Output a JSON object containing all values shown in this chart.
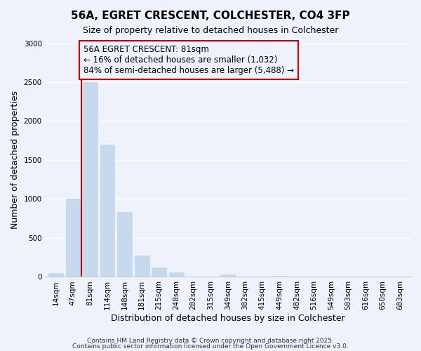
{
  "title": "56A, EGRET CRESCENT, COLCHESTER, CO4 3FP",
  "subtitle": "Size of property relative to detached houses in Colchester",
  "xlabel": "Distribution of detached houses by size in Colchester",
  "ylabel": "Number of detached properties",
  "bar_labels": [
    "14sqm",
    "47sqm",
    "81sqm",
    "114sqm",
    "148sqm",
    "181sqm",
    "215sqm",
    "248sqm",
    "282sqm",
    "315sqm",
    "349sqm",
    "382sqm",
    "415sqm",
    "449sqm",
    "482sqm",
    "516sqm",
    "549sqm",
    "583sqm",
    "616sqm",
    "650sqm",
    "683sqm"
  ],
  "bar_values": [
    50,
    1000,
    2500,
    1700,
    830,
    270,
    125,
    55,
    0,
    0,
    30,
    0,
    0,
    15,
    0,
    0,
    0,
    0,
    0,
    0,
    0
  ],
  "bar_color": "#c5d8ee",
  "bar_edge_color": "#c5d8ee",
  "redline_x": 1.5,
  "ylim": [
    0,
    3000
  ],
  "yticks": [
    0,
    500,
    1000,
    1500,
    2000,
    2500,
    3000
  ],
  "annotation_line1": "56A EGRET CRESCENT: 81sqm",
  "annotation_line2": "← 16% of detached houses are smaller (1,032)",
  "annotation_line3": "84% of semi-detached houses are larger (5,488) →",
  "footnote1": "Contains HM Land Registry data © Crown copyright and database right 2025.",
  "footnote2": "Contains public sector information licensed under the Open Government Licence v3.0.",
  "background_color": "#eef2fb",
  "box_border_color": "#cc0000",
  "redline_color": "#cc0000",
  "title_fontsize": 11,
  "subtitle_fontsize": 9,
  "axis_label_fontsize": 9,
  "tick_fontsize": 7.5,
  "annotation_fontsize": 8.5,
  "footnote_fontsize": 6.5
}
